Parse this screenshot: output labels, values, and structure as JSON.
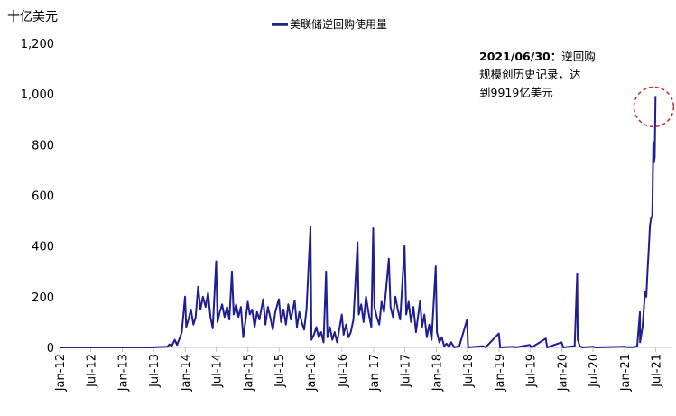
{
  "chart_data": {
    "type": "line",
    "title": "",
    "xlabel": "",
    "ylabel": "十亿美元",
    "ylim": [
      0,
      1200
    ],
    "yticks": [
      "0",
      "200",
      "400",
      "600",
      "800",
      "1,000",
      "1,200"
    ],
    "xticks": [
      "Jan-12",
      "Jul-12",
      "Jan-13",
      "Jul-13",
      "Jan-14",
      "Jul-14",
      "Jan-15",
      "Jul-15",
      "Jan-16",
      "Jul-16",
      "Jan-17",
      "Jul-17",
      "Jan-18",
      "Jul-18",
      "Jan-19",
      "Jul-19",
      "Jan-20",
      "Jul-20",
      "Jan-21",
      "Jul-21"
    ],
    "grid": false,
    "legend_position": "top-center",
    "line_color": "#1F1F8F",
    "highlight_color": "#E02020",
    "series": [
      {
        "name": "美联储逆回购使用量",
        "points": [
          [
            "2012-01-03",
            0
          ],
          [
            "2013-01-02",
            0
          ],
          [
            "2013-06-14",
            0
          ],
          [
            "2013-09-20",
            3
          ],
          [
            "2013-10-01",
            12
          ],
          [
            "2013-10-15",
            5
          ],
          [
            "2013-11-01",
            30
          ],
          [
            "2013-11-15",
            10
          ],
          [
            "2013-12-02",
            40
          ],
          [
            "2013-12-12",
            60
          ],
          [
            "2013-12-31",
            200
          ],
          [
            "2014-01-07",
            80
          ],
          [
            "2014-01-20",
            110
          ],
          [
            "2014-02-03",
            150
          ],
          [
            "2014-02-18",
            90
          ],
          [
            "2014-03-03",
            120
          ],
          [
            "2014-03-17",
            240
          ],
          [
            "2014-03-31",
            150
          ],
          [
            "2014-04-14",
            200
          ],
          [
            "2014-04-30",
            160
          ],
          [
            "2014-05-14",
            215
          ],
          [
            "2014-05-28",
            120
          ],
          [
            "2014-06-10",
            75
          ],
          [
            "2014-06-30",
            340
          ],
          [
            "2014-07-08",
            100
          ],
          [
            "2014-07-21",
            140
          ],
          [
            "2014-08-04",
            170
          ],
          [
            "2014-08-18",
            120
          ],
          [
            "2014-09-02",
            160
          ],
          [
            "2014-09-15",
            110
          ],
          [
            "2014-09-30",
            300
          ],
          [
            "2014-10-10",
            130
          ],
          [
            "2014-10-24",
            170
          ],
          [
            "2014-11-07",
            120
          ],
          [
            "2014-11-21",
            160
          ],
          [
            "2014-12-05",
            40
          ],
          [
            "2014-12-19",
            110
          ],
          [
            "2014-12-31",
            180
          ],
          [
            "2015-01-12",
            130
          ],
          [
            "2015-01-26",
            150
          ],
          [
            "2015-02-09",
            80
          ],
          [
            "2015-02-23",
            140
          ],
          [
            "2015-03-09",
            110
          ],
          [
            "2015-03-31",
            190
          ],
          [
            "2015-04-13",
            90
          ],
          [
            "2015-04-27",
            160
          ],
          [
            "2015-05-11",
            120
          ],
          [
            "2015-05-26",
            70
          ],
          [
            "2015-06-09",
            140
          ],
          [
            "2015-06-30",
            190
          ],
          [
            "2015-07-13",
            100
          ],
          [
            "2015-07-27",
            150
          ],
          [
            "2015-08-10",
            90
          ],
          [
            "2015-08-24",
            170
          ],
          [
            "2015-09-08",
            110
          ],
          [
            "2015-09-30",
            185
          ],
          [
            "2015-10-13",
            80
          ],
          [
            "2015-10-27",
            140
          ],
          [
            "2015-11-10",
            100
          ],
          [
            "2015-11-24",
            70
          ],
          [
            "2015-12-08",
            150
          ],
          [
            "2015-12-31",
            475
          ],
          [
            "2016-01-06",
            30
          ],
          [
            "2016-01-20",
            50
          ],
          [
            "2016-02-03",
            80
          ],
          [
            "2016-02-17",
            40
          ],
          [
            "2016-03-02",
            60
          ],
          [
            "2016-03-16",
            20
          ],
          [
            "2016-03-31",
            300
          ],
          [
            "2016-04-08",
            40
          ],
          [
            "2016-04-22",
            80
          ],
          [
            "2016-05-06",
            30
          ],
          [
            "2016-05-20",
            60
          ],
          [
            "2016-06-03",
            20
          ],
          [
            "2016-06-30",
            130
          ],
          [
            "2016-07-11",
            50
          ],
          [
            "2016-07-25",
            90
          ],
          [
            "2016-08-08",
            40
          ],
          [
            "2016-08-22",
            60
          ],
          [
            "2016-09-06",
            110
          ],
          [
            "2016-09-30",
            415
          ],
          [
            "2016-10-07",
            130
          ],
          [
            "2016-10-21",
            170
          ],
          [
            "2016-11-04",
            100
          ],
          [
            "2016-11-18",
            200
          ],
          [
            "2016-12-02",
            140
          ],
          [
            "2016-12-19",
            80
          ],
          [
            "2016-12-30",
            470
          ],
          [
            "2017-01-06",
            160
          ],
          [
            "2017-01-20",
            120
          ],
          [
            "2017-02-03",
            90
          ],
          [
            "2017-02-17",
            180
          ],
          [
            "2017-03-03",
            140
          ],
          [
            "2017-03-15",
            230
          ],
          [
            "2017-03-31",
            350
          ],
          [
            "2017-04-10",
            160
          ],
          [
            "2017-04-24",
            120
          ],
          [
            "2017-05-08",
            200
          ],
          [
            "2017-05-22",
            150
          ],
          [
            "2017-06-05",
            110
          ],
          [
            "2017-06-30",
            400
          ],
          [
            "2017-07-10",
            130
          ],
          [
            "2017-07-24",
            180
          ],
          [
            "2017-08-07",
            100
          ],
          [
            "2017-08-21",
            160
          ],
          [
            "2017-09-05",
            60
          ],
          [
            "2017-09-29",
            185
          ],
          [
            "2017-10-10",
            80
          ],
          [
            "2017-10-24",
            130
          ],
          [
            "2017-11-07",
            40
          ],
          [
            "2017-11-21",
            90
          ],
          [
            "2017-12-05",
            30
          ],
          [
            "2017-12-29",
            320
          ],
          [
            "2018-01-05",
            60
          ],
          [
            "2018-01-19",
            20
          ],
          [
            "2018-02-02",
            40
          ],
          [
            "2018-02-16",
            5
          ],
          [
            "2018-03-02",
            15
          ],
          [
            "2018-03-16",
            2
          ],
          [
            "2018-03-29",
            20
          ],
          [
            "2018-04-16",
            0
          ],
          [
            "2018-05-15",
            5
          ],
          [
            "2018-06-29",
            110
          ],
          [
            "2018-07-05",
            0
          ],
          [
            "2018-09-28",
            5
          ],
          [
            "2018-10-15",
            0
          ],
          [
            "2018-12-31",
            55
          ],
          [
            "2019-01-08",
            0
          ],
          [
            "2019-03-29",
            3
          ],
          [
            "2019-04-10",
            0
          ],
          [
            "2019-06-28",
            10
          ],
          [
            "2019-07-10",
            0
          ],
          [
            "2019-09-30",
            35
          ],
          [
            "2019-10-08",
            0
          ],
          [
            "2019-12-31",
            20
          ],
          [
            "2020-01-10",
            0
          ],
          [
            "2020-03-16",
            5
          ],
          [
            "2020-03-31",
            290
          ],
          [
            "2020-04-03",
            30
          ],
          [
            "2020-04-15",
            5
          ],
          [
            "2020-05-01",
            0
          ],
          [
            "2020-06-30",
            3
          ],
          [
            "2020-07-15",
            0
          ],
          [
            "2020-12-31",
            3
          ],
          [
            "2021-01-15",
            1
          ],
          [
            "2021-02-26",
            1
          ],
          [
            "2021-03-15",
            5
          ],
          [
            "2021-03-31",
            140
          ],
          [
            "2021-04-01",
            20
          ],
          [
            "2021-04-15",
            80
          ],
          [
            "2021-04-30",
            220
          ],
          [
            "2021-05-07",
            200
          ],
          [
            "2021-05-14",
            300
          ],
          [
            "2021-05-21",
            380
          ],
          [
            "2021-05-28",
            480
          ],
          [
            "2021-06-04",
            510
          ],
          [
            "2021-06-11",
            520
          ],
          [
            "2021-06-17",
            810
          ],
          [
            "2021-06-21",
            730
          ],
          [
            "2021-06-25",
            750
          ],
          [
            "2021-06-30",
            992
          ]
        ]
      }
    ],
    "annotations": [
      {
        "date": "2021-06-30",
        "value": 992,
        "text_lines": [
          "2021/06/30：逆回购",
          "规模创历史记录，达",
          "到9919亿美元"
        ],
        "bold_part": "2021/06/30："
      }
    ]
  }
}
